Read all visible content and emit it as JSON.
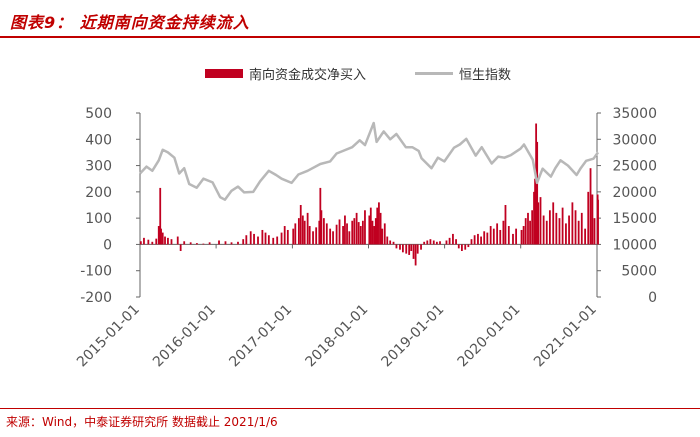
{
  "header": {
    "title": "图表9： 近期南向资金持续流入"
  },
  "footer": {
    "source": "来源：Wind，中泰证券研究所 数据截止 2021/1/6"
  },
  "colors": {
    "bars": "#c00020",
    "index_line": "#b8b8b8",
    "axis": "#666666",
    "text": "#555555",
    "accent": "#c00000"
  },
  "chart_data": {
    "type": "bar",
    "title": "",
    "legend": {
      "placement": "top",
      "entries": [
        "南向资金成交净买入",
        "恒生指数"
      ]
    },
    "x_ticks": [
      "2015-01-01",
      "2016-01-01",
      "2017-01-01",
      "2018-01-01",
      "2019-01-01",
      "2020-01-01",
      "2021-01-01"
    ],
    "y_left": {
      "ticks": [
        "500",
        "400",
        "300",
        "200",
        "100",
        "0",
        "-100",
        "-200"
      ],
      "ylim": [
        -200,
        500
      ]
    },
    "y_right": {
      "ticks": [
        "35000",
        "30000",
        "25000",
        "20000",
        "15000",
        "10000",
        "5000",
        "0"
      ],
      "ylim": [
        0,
        35000
      ]
    },
    "grid": false,
    "series": [
      {
        "name": "南向资金成交净买入",
        "kind": "bar",
        "axis": "left",
        "points": [
          [
            "2015-01-05",
            12
          ],
          [
            "2015-01-20",
            25
          ],
          [
            "2015-02-10",
            18
          ],
          [
            "2015-03-01",
            10
          ],
          [
            "2015-03-20",
            22
          ],
          [
            "2015-04-01",
            70
          ],
          [
            "2015-04-08",
            215
          ],
          [
            "2015-04-12",
            60
          ],
          [
            "2015-04-20",
            45
          ],
          [
            "2015-05-01",
            30
          ],
          [
            "2015-05-15",
            25
          ],
          [
            "2015-06-01",
            20
          ],
          [
            "2015-07-01",
            30
          ],
          [
            "2015-07-15",
            -25
          ],
          [
            "2015-08-01",
            12
          ],
          [
            "2015-09-01",
            8
          ],
          [
            "2015-10-01",
            5
          ],
          [
            "2015-11-01",
            3
          ],
          [
            "2015-12-01",
            8
          ],
          [
            "2016-01-15",
            15
          ],
          [
            "2016-02-15",
            12
          ],
          [
            "2016-03-15",
            8
          ],
          [
            "2016-04-15",
            10
          ],
          [
            "2016-05-10",
            20
          ],
          [
            "2016-05-25",
            35
          ],
          [
            "2016-06-15",
            50
          ],
          [
            "2016-07-01",
            40
          ],
          [
            "2016-07-20",
            30
          ],
          [
            "2016-08-10",
            55
          ],
          [
            "2016-08-25",
            45
          ],
          [
            "2016-09-10",
            35
          ],
          [
            "2016-10-01",
            25
          ],
          [
            "2016-10-20",
            30
          ],
          [
            "2016-11-10",
            45
          ],
          [
            "2016-11-25",
            70
          ],
          [
            "2016-12-10",
            55
          ],
          [
            "2017-01-05",
            60
          ],
          [
            "2017-01-15",
            80
          ],
          [
            "2017-02-01",
            100
          ],
          [
            "2017-02-10",
            150
          ],
          [
            "2017-02-20",
            110
          ],
          [
            "2017-03-01",
            90
          ],
          [
            "2017-03-15",
            120
          ],
          [
            "2017-03-25",
            70
          ],
          [
            "2017-04-10",
            50
          ],
          [
            "2017-04-25",
            65
          ],
          [
            "2017-05-10",
            90
          ],
          [
            "2017-05-15",
            215
          ],
          [
            "2017-05-20",
            130
          ],
          [
            "2017-06-01",
            100
          ],
          [
            "2017-06-15",
            80
          ],
          [
            "2017-07-01",
            60
          ],
          [
            "2017-07-15",
            50
          ],
          [
            "2017-08-01",
            75
          ],
          [
            "2017-08-15",
            95
          ],
          [
            "2017-09-01",
            70
          ],
          [
            "2017-09-10",
            110
          ],
          [
            "2017-09-20",
            80
          ],
          [
            "2017-10-01",
            50
          ],
          [
            "2017-10-15",
            90
          ],
          [
            "2017-10-25",
            100
          ],
          [
            "2017-11-05",
            120
          ],
          [
            "2017-11-15",
            85
          ],
          [
            "2017-11-25",
            70
          ],
          [
            "2017-12-05",
            90
          ],
          [
            "2017-12-15",
            130
          ],
          [
            "2018-01-05",
            110
          ],
          [
            "2018-01-12",
            140
          ],
          [
            "2018-01-20",
            90
          ],
          [
            "2018-01-28",
            70
          ],
          [
            "2018-02-05",
            100
          ],
          [
            "2018-02-12",
            140
          ],
          [
            "2018-02-20",
            160
          ],
          [
            "2018-02-28",
            120
          ],
          [
            "2018-03-08",
            60
          ],
          [
            "2018-03-20",
            80
          ],
          [
            "2018-04-01",
            30
          ],
          [
            "2018-04-15",
            15
          ],
          [
            "2018-05-01",
            10
          ],
          [
            "2018-05-15",
            -15
          ],
          [
            "2018-06-01",
            -20
          ],
          [
            "2018-06-15",
            -30
          ],
          [
            "2018-07-01",
            -35
          ],
          [
            "2018-07-15",
            -40
          ],
          [
            "2018-07-25",
            -25
          ],
          [
            "2018-08-05",
            -55
          ],
          [
            "2018-08-15",
            -80
          ],
          [
            "2018-08-25",
            -35
          ],
          [
            "2018-09-10",
            -20
          ],
          [
            "2018-09-25",
            10
          ],
          [
            "2018-10-10",
            15
          ],
          [
            "2018-10-25",
            20
          ],
          [
            "2018-11-10",
            15
          ],
          [
            "2018-11-25",
            10
          ],
          [
            "2018-12-10",
            12
          ],
          [
            "2019-01-10",
            15
          ],
          [
            "2019-01-25",
            25
          ],
          [
            "2019-02-10",
            40
          ],
          [
            "2019-02-25",
            20
          ],
          [
            "2019-03-10",
            -15
          ],
          [
            "2019-03-25",
            -25
          ],
          [
            "2019-04-10",
            -20
          ],
          [
            "2019-04-25",
            -10
          ],
          [
            "2019-05-10",
            20
          ],
          [
            "2019-05-25",
            35
          ],
          [
            "2019-06-10",
            40
          ],
          [
            "2019-06-25",
            30
          ],
          [
            "2019-07-10",
            50
          ],
          [
            "2019-07-25",
            45
          ],
          [
            "2019-08-10",
            70
          ],
          [
            "2019-08-25",
            60
          ],
          [
            "2019-09-10",
            80
          ],
          [
            "2019-09-25",
            55
          ],
          [
            "2019-10-10",
            90
          ],
          [
            "2019-10-20",
            150
          ],
          [
            "2019-11-05",
            70
          ],
          [
            "2019-11-25",
            40
          ],
          [
            "2019-12-10",
            60
          ],
          [
            "2020-01-05",
            55
          ],
          [
            "2020-01-15",
            70
          ],
          [
            "2020-01-25",
            100
          ],
          [
            "2020-02-05",
            120
          ],
          [
            "2020-02-15",
            90
          ],
          [
            "2020-02-25",
            130
          ],
          [
            "2020-03-05",
            200
          ],
          [
            "2020-03-10",
            250
          ],
          [
            "2020-03-15",
            460
          ],
          [
            "2020-03-20",
            390
          ],
          [
            "2020-03-25",
            160
          ],
          [
            "2020-04-05",
            180
          ],
          [
            "2020-04-20",
            110
          ],
          [
            "2020-05-05",
            90
          ],
          [
            "2020-05-20",
            130
          ],
          [
            "2020-06-05",
            160
          ],
          [
            "2020-06-20",
            120
          ],
          [
            "2020-07-05",
            100
          ],
          [
            "2020-07-20",
            140
          ],
          [
            "2020-08-05",
            80
          ],
          [
            "2020-08-20",
            110
          ],
          [
            "2020-09-05",
            160
          ],
          [
            "2020-09-20",
            130
          ],
          [
            "2020-10-05",
            90
          ],
          [
            "2020-10-20",
            120
          ],
          [
            "2020-11-05",
            60
          ],
          [
            "2020-11-20",
            200
          ],
          [
            "2020-12-01",
            290
          ],
          [
            "2020-12-10",
            190
          ],
          [
            "2020-12-20",
            100
          ],
          [
            "2021-01-04",
            190
          ],
          [
            "2021-01-06",
            170
          ]
        ]
      },
      {
        "name": "恒生指数",
        "kind": "line",
        "axis": "right",
        "points": [
          [
            "2015-01-01",
            23500
          ],
          [
            "2015-02-01",
            24800
          ],
          [
            "2015-03-01",
            24000
          ],
          [
            "2015-04-01",
            26000
          ],
          [
            "2015-04-20",
            28000
          ],
          [
            "2015-05-15",
            27500
          ],
          [
            "2015-06-15",
            26500
          ],
          [
            "2015-07-08",
            23500
          ],
          [
            "2015-08-01",
            24500
          ],
          [
            "2015-08-25",
            21500
          ],
          [
            "2015-09-30",
            20800
          ],
          [
            "2015-11-01",
            22500
          ],
          [
            "2015-12-15",
            21800
          ],
          [
            "2016-01-20",
            19000
          ],
          [
            "2016-02-12",
            18500
          ],
          [
            "2016-03-15",
            20200
          ],
          [
            "2016-04-15",
            21000
          ],
          [
            "2016-05-15",
            19900
          ],
          [
            "2016-06-27",
            20000
          ],
          [
            "2016-07-30",
            22000
          ],
          [
            "2016-09-10",
            24000
          ],
          [
            "2016-10-15",
            23200
          ],
          [
            "2016-11-10",
            22500
          ],
          [
            "2016-12-28",
            21700
          ],
          [
            "2017-01-30",
            23300
          ],
          [
            "2017-03-15",
            24000
          ],
          [
            "2017-05-15",
            25300
          ],
          [
            "2017-07-01",
            25800
          ],
          [
            "2017-08-01",
            27300
          ],
          [
            "2017-09-01",
            27800
          ],
          [
            "2017-10-15",
            28500
          ],
          [
            "2017-11-20",
            29800
          ],
          [
            "2017-12-15",
            28900
          ],
          [
            "2018-01-26",
            33100
          ],
          [
            "2018-02-09",
            29500
          ],
          [
            "2018-03-15",
            31500
          ],
          [
            "2018-04-15",
            30000
          ],
          [
            "2018-05-15",
            31000
          ],
          [
            "2018-06-29",
            28500
          ],
          [
            "2018-07-30",
            28500
          ],
          [
            "2018-08-30",
            27800
          ],
          [
            "2018-09-12",
            26400
          ],
          [
            "2018-10-30",
            24500
          ],
          [
            "2018-11-30",
            26500
          ],
          [
            "2018-12-31",
            25800
          ],
          [
            "2019-02-15",
            28400
          ],
          [
            "2019-03-15",
            29000
          ],
          [
            "2019-04-15",
            30100
          ],
          [
            "2019-05-30",
            26900
          ],
          [
            "2019-06-28",
            28500
          ],
          [
            "2019-08-15",
            25400
          ],
          [
            "2019-09-15",
            26700
          ],
          [
            "2019-10-15",
            26500
          ],
          [
            "2019-11-15",
            27000
          ],
          [
            "2019-12-31",
            28200
          ],
          [
            "2020-01-17",
            29000
          ],
          [
            "2020-02-28",
            26100
          ],
          [
            "2020-03-19",
            21700
          ],
          [
            "2020-04-15",
            24400
          ],
          [
            "2020-05-25",
            22900
          ],
          [
            "2020-06-15",
            24500
          ],
          [
            "2020-07-10",
            26000
          ],
          [
            "2020-08-15",
            25000
          ],
          [
            "2020-09-25",
            23200
          ],
          [
            "2020-10-15",
            24500
          ],
          [
            "2020-11-10",
            25900
          ],
          [
            "2020-12-15",
            26300
          ],
          [
            "2021-01-06",
            27500
          ]
        ]
      }
    ]
  }
}
